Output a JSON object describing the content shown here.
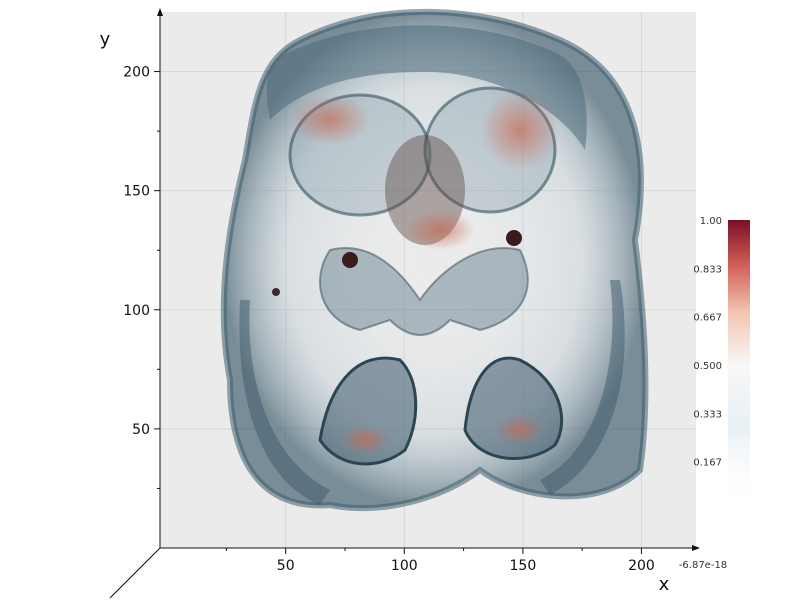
{
  "chart_data": {
    "type": "volume",
    "xlabel": "x",
    "ylabel": "y",
    "xlim": [
      -3,
      223
    ],
    "ylim": [
      0,
      225
    ],
    "x_ticks": [
      "50",
      "100",
      "150",
      "200"
    ],
    "y_ticks": [
      "50",
      "100",
      "150",
      "200"
    ],
    "x_tick_values": [
      50,
      100,
      150,
      200
    ],
    "y_tick_values": [
      50,
      100,
      150,
      200
    ],
    "grid": true,
    "colorscale": "RdBu (reversed)",
    "colorbar": {
      "min_label": "-6.87e-18",
      "max_label": "1.00",
      "tick_labels": [
        "1.00",
        "0.833",
        "0.667",
        "0.500",
        "0.333",
        "0.167",
        "-6.87e-18"
      ],
      "tick_values": [
        1.0,
        0.833,
        0.667,
        0.5,
        0.333,
        0.167,
        0.0
      ],
      "placement": "right"
    },
    "colors": {
      "high": "#7a0f25",
      "mid_high": "#e7a086",
      "mid": "#f7f7f7",
      "mid_low": "#d8e6ef",
      "low": "#2f5366",
      "plot_background": "#ebebeb",
      "grid": "#d7d7d7"
    }
  }
}
